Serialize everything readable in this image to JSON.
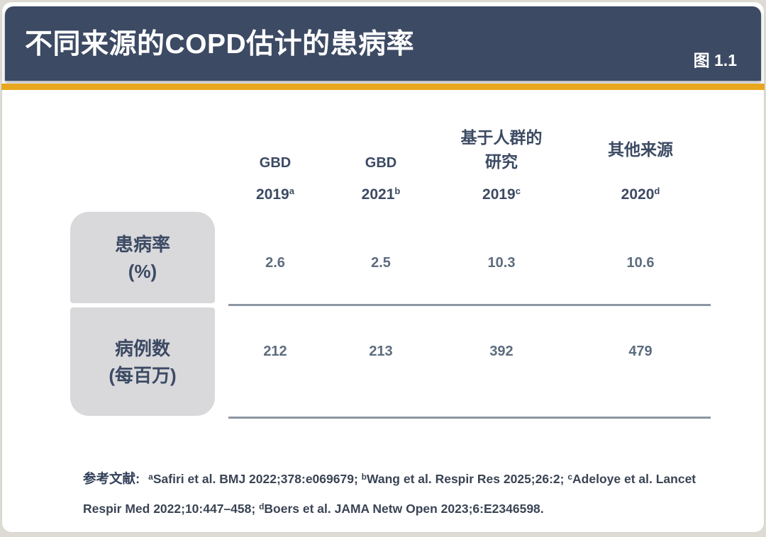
{
  "slide": {
    "title": "不同来源的COPD估计的患病率",
    "figure_label": "图 1.1"
  },
  "colors": {
    "header_bg": "#3C4A63",
    "accent_gold": "#E8A71E",
    "row_label_bg": "#D9D9DC",
    "heading_text": "#3C4A63",
    "value_text": "#5D6C7E",
    "separator": "#8C96A2"
  },
  "chart_data": {
    "type": "table",
    "title": "不同来源的COPD估计的患病率",
    "columns": [
      {
        "lines": [
          "GBD"
        ],
        "year": "2019",
        "sup": "a"
      },
      {
        "lines": [
          "GBD"
        ],
        "year": "2021",
        "sup": "b"
      },
      {
        "lines": [
          "基于人群的",
          "研究"
        ],
        "year": "2019",
        "sup": "c"
      },
      {
        "lines": [
          "其他来源"
        ],
        "year": "2020",
        "sup": "d"
      }
    ],
    "rows": [
      {
        "label_lines": [
          "患病率",
          "(%)"
        ],
        "values": [
          "2.6",
          "2.5",
          "10.3",
          "10.6"
        ]
      },
      {
        "label_lines": [
          "病例数",
          "(每百万)"
        ],
        "values": [
          "212",
          "213",
          "392",
          "479"
        ]
      }
    ]
  },
  "references": {
    "label": "参考文献:",
    "items": [
      {
        "sup": "a",
        "text": "Safiri et al. BMJ 2022;378:e069679; "
      },
      {
        "sup": "b",
        "text": "Wang et al. Respir Res 2025;26:2; "
      },
      {
        "sup": "c",
        "text": "Adeloye et al. Lancet Respir Med 2022;10:447–458; "
      },
      {
        "sup": "d",
        "text": "Boers et al. JAMA Netw Open 2023;6:E2346598."
      }
    ]
  }
}
